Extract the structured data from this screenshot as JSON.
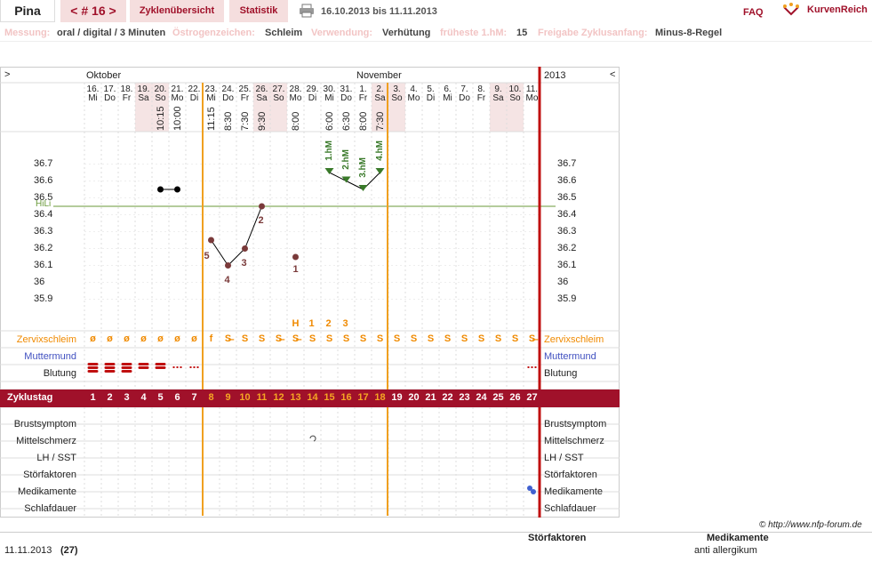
{
  "header": {
    "name": "Pina",
    "cycle_nav": "< # 16 >",
    "tab_overview": "Zyklenübersicht",
    "tab_stats": "Statistik",
    "date_range": "16.10.2013 bis 11.11.2013",
    "faq": "FAQ",
    "brand": "KurvenReich"
  },
  "info": [
    {
      "label": "Messung:",
      "value": "oral / digital / 3 Minuten"
    },
    {
      "label": "Östrogenzeichen:",
      "value": "Schleim"
    },
    {
      "label": "Verwendung:",
      "value": "Verhütung"
    },
    {
      "label": "früheste 1.hM:",
      "value": "15"
    },
    {
      "label": "Freigabe Zyklusanfang:",
      "value": "Minus-8-Regel"
    }
  ],
  "chart": {
    "nav_left": ">",
    "nav_right": "<",
    "month1": "Oktober",
    "month2": "November",
    "year": "2013",
    "days": [
      {
        "d": "16.",
        "w": "Mi",
        "t": "",
        "we": false
      },
      {
        "d": "17.",
        "w": "Do",
        "t": "",
        "we": false
      },
      {
        "d": "18.",
        "w": "Fr",
        "t": "",
        "we": false
      },
      {
        "d": "19.",
        "w": "Sa",
        "t": "",
        "we": true
      },
      {
        "d": "20.",
        "w": "So",
        "t": "10:15",
        "we": true
      },
      {
        "d": "21.",
        "w": "Mo",
        "t": "10:00",
        "we": false
      },
      {
        "d": "22.",
        "w": "Di",
        "t": "",
        "we": false
      },
      {
        "d": "23.",
        "w": "Mi",
        "t": "11:15",
        "we": false
      },
      {
        "d": "24.",
        "w": "Do",
        "t": "8:30",
        "we": false
      },
      {
        "d": "25.",
        "w": "Fr",
        "t": "7:30",
        "we": false
      },
      {
        "d": "26.",
        "w": "Sa",
        "t": "9:30",
        "we": true
      },
      {
        "d": "27.",
        "w": "So",
        "t": "",
        "we": true
      },
      {
        "d": "28.",
        "w": "Mo",
        "t": "8:00",
        "we": false
      },
      {
        "d": "29.",
        "w": "Di",
        "t": "",
        "we": false
      },
      {
        "d": "30.",
        "w": "Mi",
        "t": "6:00",
        "we": false
      },
      {
        "d": "31.",
        "w": "Do",
        "t": "6:30",
        "we": false
      },
      {
        "d": "1.",
        "w": "Fr",
        "t": "8:00",
        "we": false
      },
      {
        "d": "2.",
        "w": "Sa",
        "t": "7:30",
        "we": true
      },
      {
        "d": "3.",
        "w": "So",
        "t": "",
        "we": true
      },
      {
        "d": "4.",
        "w": "Mo",
        "t": "",
        "we": false
      },
      {
        "d": "5.",
        "w": "Di",
        "t": "",
        "we": false
      },
      {
        "d": "6.",
        "w": "Mi",
        "t": "",
        "we": false
      },
      {
        "d": "7.",
        "w": "Do",
        "t": "",
        "we": false
      },
      {
        "d": "8.",
        "w": "Fr",
        "t": "",
        "we": false
      },
      {
        "d": "9.",
        "w": "Sa",
        "t": "",
        "we": true
      },
      {
        "d": "10.",
        "w": "So",
        "t": "",
        "we": true
      },
      {
        "d": "11.",
        "w": "Mo",
        "t": "",
        "we": false
      }
    ],
    "temp_ticks": [
      "36.7",
      "36.6",
      "36.5",
      "36.4",
      "36.3",
      "36.2",
      "36.1",
      "36",
      "35.9"
    ],
    "hili_label": "HiLi",
    "temps": [
      null,
      null,
      null,
      null,
      36.55,
      36.55,
      null,
      36.25,
      36.1,
      36.2,
      36.45,
      null,
      36.15,
      null,
      36.65,
      36.6,
      36.55,
      36.65,
      null,
      null,
      null,
      null,
      null,
      null,
      null,
      null,
      null
    ],
    "count_labels": [
      {
        "i": 7,
        "v": "5"
      },
      {
        "i": 8,
        "v": "4"
      },
      {
        "i": 9,
        "v": "3"
      },
      {
        "i": 10,
        "v": "2"
      },
      {
        "i": 12,
        "v": "1"
      }
    ],
    "hm_labels": [
      {
        "i": 14,
        "v": "1.hM"
      },
      {
        "i": 15,
        "v": "2.hM"
      },
      {
        "i": 16,
        "v": "3.hM"
      },
      {
        "i": 17,
        "v": "4.hM"
      }
    ],
    "peak_labels": [
      {
        "i": 12,
        "v": "H"
      },
      {
        "i": 13,
        "v": "1"
      },
      {
        "i": 14,
        "v": "2"
      },
      {
        "i": 15,
        "v": "3"
      }
    ],
    "mucus": [
      "ø",
      "ø",
      "ø",
      "ø",
      "ø",
      "ø",
      "ø",
      "f",
      "S̶",
      "S",
      "S",
      "S̶",
      "S̶",
      "S",
      "S",
      "S",
      "S",
      "S",
      "S",
      "S",
      "S",
      "S",
      "S",
      "S",
      "S",
      "S",
      "S̶"
    ],
    "bleed": [
      "3",
      "3",
      "3",
      "2",
      "2",
      "1",
      "1",
      "",
      "",
      "",
      "",
      "",
      "",
      "",
      "",
      "",
      "",
      "",
      "",
      "",
      "",
      "",
      "",
      "",
      "",
      "",
      "1"
    ],
    "row_labels": {
      "mucus": "Zervixschleim",
      "cervix": "Muttermund",
      "bleeding": "Blutung",
      "cycle": "Zyklustag",
      "breast": "Brustsymptom",
      "mittel": "Mittelschmerz",
      "lh": "LH / SST",
      "stoer": "Störfaktoren",
      "medi": "Medikamente",
      "sleep": "Schlafdauer"
    },
    "cycle_days": [
      "1",
      "2",
      "3",
      "4",
      "5",
      "6",
      "7",
      "8",
      "9",
      "10",
      "11",
      "12",
      "13",
      "14",
      "15",
      "16",
      "17",
      "18",
      "19",
      "20",
      "21",
      "22",
      "23",
      "24",
      "25",
      "26",
      "27"
    ]
  },
  "footer": {
    "copyright": "© http://www.nfp-forum.de",
    "col_stoer": "Störfaktoren",
    "col_medi": "Medikamente",
    "date": "11.11.2013",
    "count": "(27)",
    "medi_value": "anti allergikum"
  }
}
